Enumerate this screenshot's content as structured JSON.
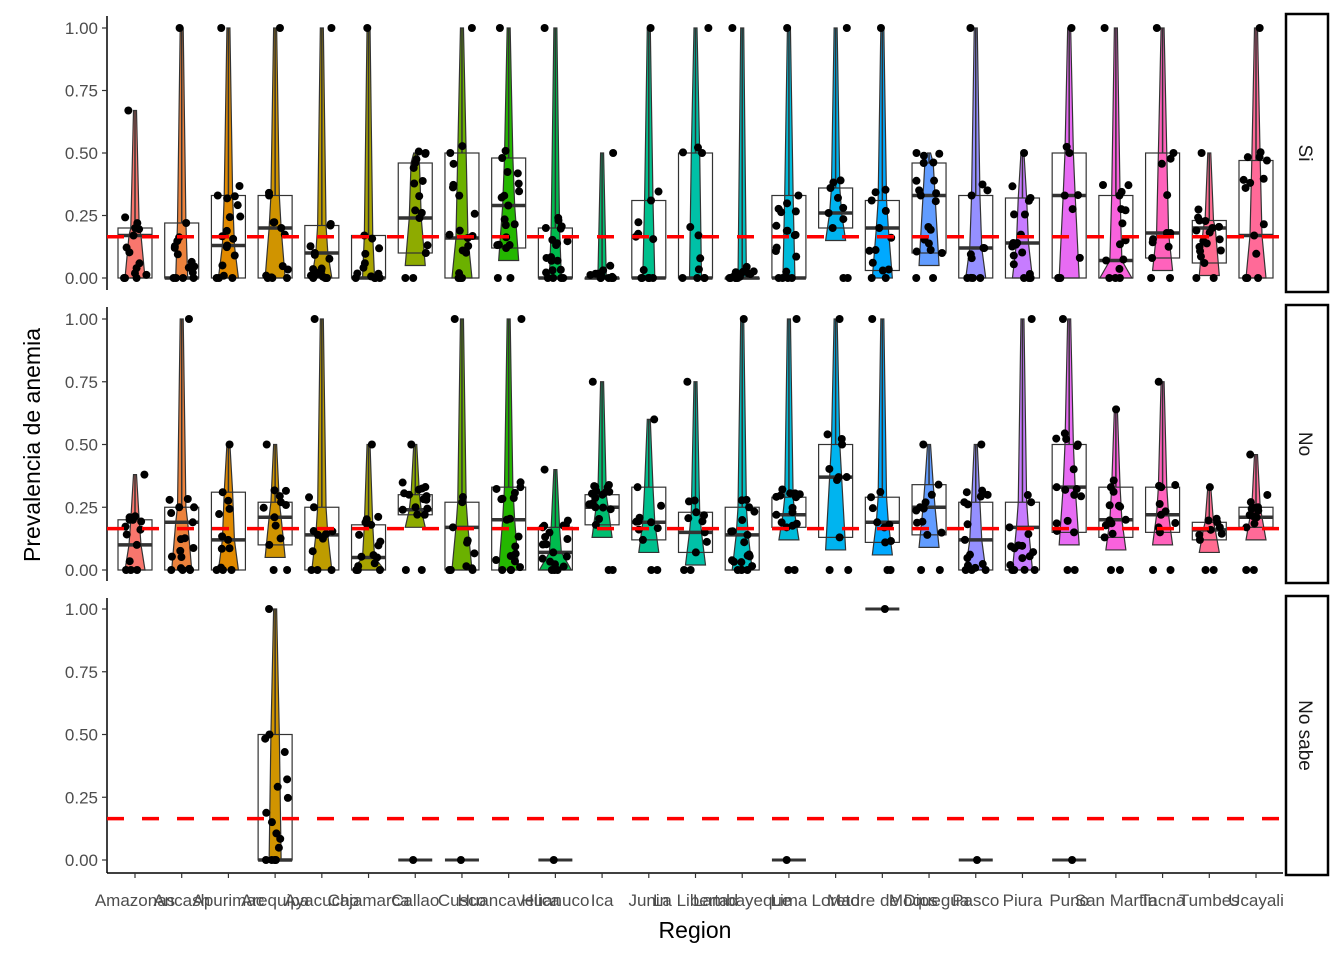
{
  "chart_data": {
    "type": "violin-box-jitter",
    "xlabel": "Region",
    "ylabel": "Prevalencia de anemia",
    "ylim": [
      0,
      1
    ],
    "yticks": [
      "0.00",
      "0.25",
      "0.50",
      "0.75",
      "1.00"
    ],
    "ytick_values": [
      0,
      0.25,
      0.5,
      0.75,
      1.0
    ],
    "reference_line": {
      "value": 0.165,
      "color": "#ff0000",
      "style": "dashed"
    },
    "categories": [
      "Amazonas",
      "Ancash",
      "Apurimac",
      "Arequipa",
      "Ayacucho",
      "Cajamarca",
      "Callao",
      "Cusco",
      "Huancavelica",
      "Huanuco",
      "Ica",
      "Junin",
      "La Libertad",
      "Lambayeque",
      "Lima",
      "Loreto",
      "Madre de Dios",
      "Moquegua",
      "Pasco",
      "Piura",
      "Puno",
      "San Martin",
      "Tacna",
      "Tumbes",
      "Ucayali"
    ],
    "category_colors": [
      "#F8766D",
      "#EC823C",
      "#E18A00",
      "#D09400",
      "#BE9C00",
      "#A9A400",
      "#8EAB00",
      "#6BB100",
      "#24B700",
      "#00BB4E",
      "#00BE70",
      "#00C08D",
      "#00C1A7",
      "#00BFC0",
      "#00BBDA",
      "#00B4EF",
      "#00A9FF",
      "#619CFF",
      "#9590FF",
      "#C77CFF",
      "#E76BF3",
      "#F962DD",
      "#FF62BC",
      "#FF6C91",
      "#FF6A98"
    ],
    "facets": [
      {
        "name": "Si",
        "groups": [
          {
            "q1": 0.0,
            "median": 0.17,
            "q3": 0.2,
            "max": 0.67
          },
          {
            "q1": 0.0,
            "median": 0.0,
            "q3": 0.22,
            "max": 1.0
          },
          {
            "q1": 0.0,
            "median": 0.13,
            "q3": 0.33,
            "max": 1.0
          },
          {
            "q1": 0.0,
            "median": 0.2,
            "q3": 0.33,
            "max": 1.0
          },
          {
            "q1": 0.0,
            "median": 0.1,
            "q3": 0.21,
            "max": 1.0
          },
          {
            "q1": 0.0,
            "median": 0.0,
            "q3": 0.17,
            "max": 1.0
          },
          {
            "q1": 0.1,
            "median": 0.24,
            "q3": 0.46,
            "max": 0.5
          },
          {
            "q1": 0.0,
            "median": 0.16,
            "q3": 0.5,
            "max": 1.0
          },
          {
            "q1": 0.12,
            "median": 0.29,
            "q3": 0.48,
            "max": 1.0
          },
          {
            "q1": 0.0,
            "median": 0.0,
            "q3": 0.2,
            "max": 1.0
          },
          {
            "q1": 0.0,
            "median": 0.0,
            "q3": 0.0,
            "max": 0.5
          },
          {
            "q1": 0.0,
            "median": 0.0,
            "q3": 0.31,
            "max": 1.0
          },
          {
            "q1": 0.0,
            "median": 0.0,
            "q3": 0.5,
            "max": 1.0
          },
          {
            "q1": 0.0,
            "median": 0.0,
            "q3": 0.0,
            "max": 1.0
          },
          {
            "q1": 0.0,
            "median": 0.0,
            "q3": 0.33,
            "max": 1.0
          },
          {
            "q1": 0.2,
            "median": 0.26,
            "q3": 0.36,
            "max": 1.0
          },
          {
            "q1": 0.03,
            "median": 0.2,
            "q3": 0.31,
            "max": 1.0
          },
          {
            "q1": 0.1,
            "median": 0.33,
            "q3": 0.46,
            "max": 0.5
          },
          {
            "q1": 0.0,
            "median": 0.12,
            "q3": 0.33,
            "max": 1.0
          },
          {
            "q1": 0.0,
            "median": 0.14,
            "q3": 0.32,
            "max": 0.5
          },
          {
            "q1": 0.0,
            "median": 0.33,
            "q3": 0.5,
            "max": 1.0
          },
          {
            "q1": 0.0,
            "median": 0.07,
            "q3": 0.33,
            "max": 1.0
          },
          {
            "q1": 0.08,
            "median": 0.18,
            "q3": 0.5,
            "max": 1.0
          },
          {
            "q1": 0.06,
            "median": 0.2,
            "q3": 0.23,
            "max": 0.5
          },
          {
            "q1": 0.0,
            "median": 0.17,
            "q3": 0.47,
            "max": 1.0
          }
        ]
      },
      {
        "name": "No",
        "groups": [
          {
            "q1": 0.0,
            "median": 0.1,
            "q3": 0.2,
            "max": 0.38
          },
          {
            "q1": 0.0,
            "median": 0.19,
            "q3": 0.25,
            "max": 1.0
          },
          {
            "q1": 0.0,
            "median": 0.12,
            "q3": 0.31,
            "max": 0.5
          },
          {
            "q1": 0.1,
            "median": 0.21,
            "q3": 0.27,
            "max": 0.5
          },
          {
            "q1": 0.0,
            "median": 0.14,
            "q3": 0.25,
            "max": 1.0
          },
          {
            "q1": 0.0,
            "median": 0.05,
            "q3": 0.18,
            "max": 0.5
          },
          {
            "q1": 0.22,
            "median": 0.24,
            "q3": 0.3,
            "max": 0.5
          },
          {
            "q1": 0.0,
            "median": 0.17,
            "q3": 0.27,
            "max": 1.0
          },
          {
            "q1": 0.0,
            "median": 0.2,
            "q3": 0.33,
            "max": 1.0
          },
          {
            "q1": 0.0,
            "median": 0.07,
            "q3": 0.17,
            "max": 0.4
          },
          {
            "q1": 0.18,
            "median": 0.25,
            "q3": 0.3,
            "max": 0.75
          },
          {
            "q1": 0.12,
            "median": 0.19,
            "q3": 0.33,
            "max": 0.6
          },
          {
            "q1": 0.07,
            "median": 0.15,
            "q3": 0.23,
            "max": 0.75
          },
          {
            "q1": 0.0,
            "median": 0.14,
            "q3": 0.25,
            "max": 1.0
          },
          {
            "q1": 0.17,
            "median": 0.22,
            "q3": 0.29,
            "max": 1.0
          },
          {
            "q1": 0.13,
            "median": 0.37,
            "q3": 0.5,
            "max": 1.0
          },
          {
            "q1": 0.11,
            "median": 0.19,
            "q3": 0.29,
            "max": 1.0
          },
          {
            "q1": 0.14,
            "median": 0.25,
            "q3": 0.34,
            "max": 0.5
          },
          {
            "q1": 0.0,
            "median": 0.12,
            "q3": 0.27,
            "max": 0.5
          },
          {
            "q1": 0.0,
            "median": 0.17,
            "q3": 0.27,
            "max": 1.0
          },
          {
            "q1": 0.15,
            "median": 0.33,
            "q3": 0.5,
            "max": 1.0
          },
          {
            "q1": 0.13,
            "median": 0.2,
            "q3": 0.33,
            "max": 0.64
          },
          {
            "q1": 0.15,
            "median": 0.22,
            "q3": 0.33,
            "max": 0.75
          },
          {
            "q1": 0.12,
            "median": 0.16,
            "q3": 0.19,
            "max": 0.33
          },
          {
            "q1": 0.17,
            "median": 0.21,
            "q3": 0.25,
            "max": 0.46
          }
        ]
      },
      {
        "name": "No sabe",
        "groups": [
          null,
          null,
          null,
          {
            "q1": 0.0,
            "median": 0.0,
            "q3": 0.5,
            "max": 1.0
          },
          null,
          null,
          {
            "q1": 0.0,
            "median": 0.0,
            "q3": 0.0,
            "max": 0.0
          },
          {
            "q1": 0.0,
            "median": 0.0,
            "q3": 0.0,
            "max": 0.0
          },
          null,
          {
            "q1": 0.0,
            "median": 0.0,
            "q3": 0.0,
            "max": 0.0
          },
          null,
          null,
          null,
          null,
          {
            "q1": 0.0,
            "median": 0.0,
            "q3": 0.0,
            "max": 0.0
          },
          null,
          {
            "q1": 1.0,
            "median": 1.0,
            "q3": 1.0,
            "max": 1.0
          },
          null,
          {
            "q1": 0.0,
            "median": 0.0,
            "q3": 0.0,
            "max": 0.0
          },
          null,
          {
            "q1": 0.0,
            "median": 0.0,
            "q3": 0.0,
            "max": 0.0
          },
          null,
          null,
          null,
          null
        ]
      }
    ]
  }
}
